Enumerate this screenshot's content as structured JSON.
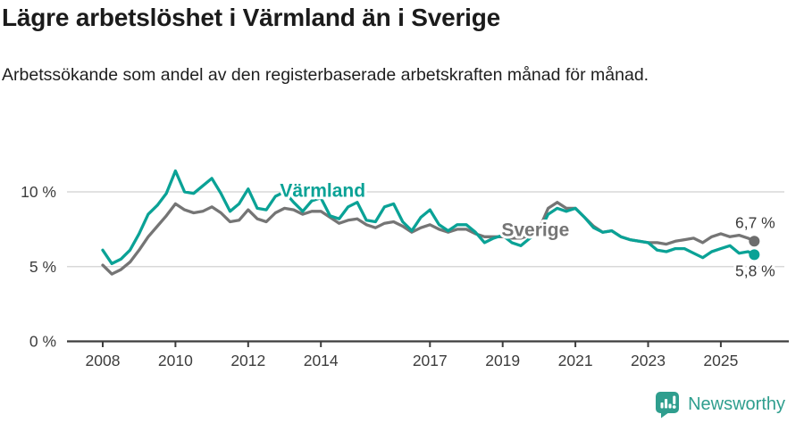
{
  "header": {
    "title": "Lägre arbetslöshet i Värmland än i Sverige",
    "subtitle": "Arbetssökande som andel av den registerbaserade arbetskraften månad för månad."
  },
  "footer": {
    "brand": "Newsworthy",
    "logo_icon": "speech-bubble-bar-chart-icon"
  },
  "colors": {
    "varmland": "#0aa296",
    "sverige": "#757575",
    "sverige_dot": "#6d6d6d",
    "axis": "#3d3d3d",
    "grid": "#d8d8d8",
    "label_text": "#3a3a3a",
    "brand_teal": "#2f9e8e"
  },
  "chart_data": {
    "type": "line",
    "title": "Lägre arbetslöshet i Värmland än i Sverige",
    "subtitle": "Arbetssökande som andel av den registerbaserade arbetskraften månad för månad.",
    "xlabel": "",
    "ylabel": "",
    "grid": "horizontal",
    "legend_position": "inline-labels",
    "ylim": [
      0,
      12.4
    ],
    "xlim": [
      2008,
      2026.8
    ],
    "yticks": [
      {
        "value": 0,
        "label": "0 %"
      },
      {
        "value": 5,
        "label": "5 %"
      },
      {
        "value": 10,
        "label": "10 %"
      }
    ],
    "xticks": [
      {
        "value": 2008,
        "label": "2008"
      },
      {
        "value": 2010,
        "label": "2010"
      },
      {
        "value": 2012,
        "label": "2012"
      },
      {
        "value": 2014,
        "label": "2014"
      },
      {
        "value": 2017,
        "label": "2017"
      },
      {
        "value": 2019,
        "label": "2019"
      },
      {
        "value": 2021,
        "label": "2021"
      },
      {
        "value": 2023,
        "label": "2023"
      },
      {
        "value": 2025,
        "label": "2025"
      }
    ],
    "x": [
      2008,
      2008.25,
      2008.5,
      2008.75,
      2009,
      2009.25,
      2009.5,
      2009.75,
      2010,
      2010.25,
      2010.5,
      2010.75,
      2011,
      2011.25,
      2011.5,
      2011.75,
      2012,
      2012.25,
      2012.5,
      2012.75,
      2013,
      2013.25,
      2013.5,
      2013.75,
      2014,
      2014.25,
      2014.5,
      2014.75,
      2015,
      2015.25,
      2015.5,
      2015.75,
      2016,
      2016.25,
      2016.5,
      2016.75,
      2017,
      2017.25,
      2017.5,
      2017.75,
      2018,
      2018.25,
      2018.5,
      2018.75,
      2019,
      2019.25,
      2019.5,
      2019.75,
      2020,
      2020.25,
      2020.5,
      2020.75,
      2021,
      2021.25,
      2021.5,
      2021.75,
      2022,
      2022.25,
      2022.5,
      2022.75,
      2023,
      2023.25,
      2023.5,
      2023.75,
      2024,
      2024.25,
      2024.5,
      2024.75,
      2025,
      2025.25,
      2025.5,
      2025.75,
      2025.92
    ],
    "series": [
      {
        "name": "Sverige",
        "color": "#757575",
        "dot_color": "#6d6d6d",
        "end_label": "6,7 %",
        "end_label_position": "above",
        "label_pos": {
          "x": 2019.9,
          "y": 7.45
        },
        "values": [
          5.1,
          4.5,
          4.8,
          5.3,
          6.1,
          7.0,
          7.7,
          8.4,
          9.2,
          8.8,
          8.6,
          8.7,
          9.0,
          8.6,
          8.0,
          8.1,
          8.8,
          8.2,
          8.0,
          8.6,
          8.9,
          8.8,
          8.5,
          8.7,
          8.7,
          8.3,
          7.9,
          8.1,
          8.2,
          7.8,
          7.6,
          7.9,
          8.0,
          7.7,
          7.3,
          7.6,
          7.8,
          7.5,
          7.3,
          7.5,
          7.5,
          7.2,
          7.0,
          7.0,
          7.0,
          6.9,
          6.9,
          7.1,
          7.5,
          8.9,
          9.3,
          8.9,
          8.9,
          8.3,
          7.7,
          7.3,
          7.4,
          7.0,
          6.8,
          6.7,
          6.6,
          6.6,
          6.5,
          6.7,
          6.8,
          6.9,
          6.6,
          7.0,
          7.2,
          7.0,
          7.1,
          6.9,
          6.7
        ]
      },
      {
        "name": "Värmland",
        "color": "#0aa296",
        "dot_color": "#0aa296",
        "end_label": "5,8 %",
        "end_label_position": "below",
        "label_pos": {
          "x": 2014.05,
          "y": 10.1
        },
        "values": [
          6.1,
          5.2,
          5.5,
          6.1,
          7.2,
          8.5,
          9.1,
          9.9,
          11.4,
          10.0,
          9.9,
          10.4,
          10.9,
          9.9,
          8.7,
          9.2,
          10.2,
          8.9,
          8.8,
          9.7,
          10.0,
          9.3,
          8.7,
          9.4,
          9.6,
          8.4,
          8.2,
          9.0,
          9.3,
          8.1,
          8.0,
          9.0,
          9.2,
          8.0,
          7.4,
          8.3,
          8.8,
          7.8,
          7.4,
          7.8,
          7.8,
          7.3,
          6.6,
          6.9,
          7.1,
          6.6,
          6.4,
          6.9,
          7.3,
          8.5,
          8.9,
          8.7,
          8.9,
          8.3,
          7.6,
          7.3,
          7.4,
          7.0,
          6.8,
          6.7,
          6.6,
          6.1,
          6.0,
          6.2,
          6.2,
          5.9,
          5.6,
          6.0,
          6.2,
          6.4,
          5.9,
          6.0,
          5.8
        ]
      }
    ]
  }
}
